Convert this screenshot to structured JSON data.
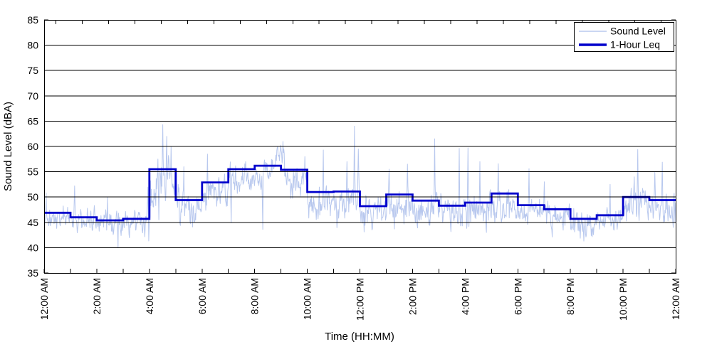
{
  "chart_data": {
    "type": "line",
    "title": "",
    "xlabel": "Time (HH:MM)",
    "ylabel": "Sound Level (dBA)",
    "ylim": [
      35,
      85
    ],
    "xlim_hours": [
      0,
      24
    ],
    "grid": "horizontal",
    "background": "#ffffff",
    "frame_color": "#000000",
    "y_ticks": [
      35,
      40,
      45,
      50,
      55,
      60,
      65,
      70,
      75,
      80,
      85
    ],
    "x_tick_hours": [
      0,
      2,
      4,
      6,
      8,
      10,
      12,
      14,
      16,
      18,
      20,
      22,
      24
    ],
    "x_tick_labels": [
      "12:00 AM",
      "2:00 AM",
      "4:00 AM",
      "6:00 AM",
      "8:00 AM",
      "10:00 AM",
      "12:00 PM",
      "2:00 PM",
      "4:00 PM",
      "6:00 PM",
      "8:00 PM",
      "10:00 PM",
      "12:00 AM"
    ],
    "legend": {
      "position": "top-right",
      "entries": [
        {
          "label": "Sound Level",
          "color": "#b8c8ee",
          "line_width": 1.5
        },
        {
          "label": "1-Hour Leq",
          "color": "#0000cc",
          "line_width": 3.5
        }
      ]
    },
    "series": [
      {
        "name": "1-Hour Leq",
        "type": "step-hourly",
        "color": "#0000cc",
        "hours": [
          0,
          1,
          2,
          3,
          4,
          5,
          6,
          7,
          8,
          9,
          10,
          11,
          12,
          13,
          14,
          15,
          16,
          17,
          18,
          19,
          20,
          21,
          22,
          23
        ],
        "values": [
          46.9,
          46.0,
          45.4,
          45.7,
          55.5,
          49.4,
          52.9,
          55.5,
          56.2,
          55.4,
          51.0,
          51.1,
          48.2,
          50.5,
          49.3,
          48.3,
          48.9,
          50.7,
          48.4,
          47.6,
          45.7,
          46.4,
          50.0,
          49.4
        ]
      },
      {
        "name": "Sound Level",
        "type": "noisy-minute",
        "color": "#b8c8ee",
        "generation": {
          "seed": 1337,
          "points_per_hour": 60,
          "floor": 39.8,
          "ceil": 60.8,
          "hourly_median": [
            46.0,
            45.2,
            44.7,
            45.0,
            51.0,
            48.0,
            51.5,
            54.0,
            55.0,
            53.5,
            49.0,
            48.8,
            46.8,
            48.2,
            47.2,
            47.0,
            47.3,
            48.8,
            47.0,
            46.2,
            44.4,
            45.3,
            48.3,
            47.8
          ],
          "hourly_spread": [
            1.7,
            1.6,
            1.7,
            1.6,
            2.8,
            2.2,
            2.0,
            1.9,
            1.7,
            2.1,
            2.0,
            2.2,
            2.0,
            2.0,
            2.1,
            2.1,
            2.2,
            1.9,
            1.9,
            1.9,
            1.6,
            1.7,
            2.0,
            1.9
          ],
          "humps": [
            [
              4.35,
              4.95,
              2.6
            ],
            [
              8.55,
              9.3,
              3.2
            ]
          ],
          "spikes": [
            [
              0.07,
              50.8
            ],
            [
              1.15,
              52.2
            ],
            [
              2.4,
              50.0
            ],
            [
              3.93,
              52.0
            ],
            [
              4.32,
              57.5
            ],
            [
              4.5,
              64.3
            ],
            [
              4.65,
              62.0
            ],
            [
              4.82,
              60.0
            ],
            [
              5.3,
              56.0
            ],
            [
              6.2,
              58.5
            ],
            [
              7.65,
              57.0
            ],
            [
              8.85,
              59.8
            ],
            [
              9.0,
              59.2
            ],
            [
              9.9,
              58.0
            ],
            [
              10.6,
              59.3
            ],
            [
              11.5,
              57.0
            ],
            [
              11.78,
              64.0
            ],
            [
              11.93,
              59.5
            ],
            [
              13.1,
              55.5
            ],
            [
              13.8,
              56.5
            ],
            [
              14.83,
              61.5
            ],
            [
              15.77,
              59.6
            ],
            [
              16.1,
              59.7
            ],
            [
              16.55,
              57.0
            ],
            [
              17.25,
              56.6
            ],
            [
              18.42,
              55.6
            ],
            [
              19.0,
              53.0
            ],
            [
              21.5,
              52.5
            ],
            [
              22.42,
              54.0
            ],
            [
              22.55,
              59.4
            ],
            [
              23.2,
              55.0
            ],
            [
              23.48,
              56.9
            ]
          ],
          "dips": [
            [
              2.8,
              40.0
            ],
            [
              7.1,
              44.9
            ],
            [
              8.3,
              43.6
            ],
            [
              12.45,
              43.5
            ],
            [
              13.3,
              43.7
            ],
            [
              16.8,
              43.0
            ],
            [
              19.3,
              42.1
            ],
            [
              20.5,
              41.3
            ],
            [
              23.9,
              44.0
            ]
          ]
        }
      }
    ]
  }
}
